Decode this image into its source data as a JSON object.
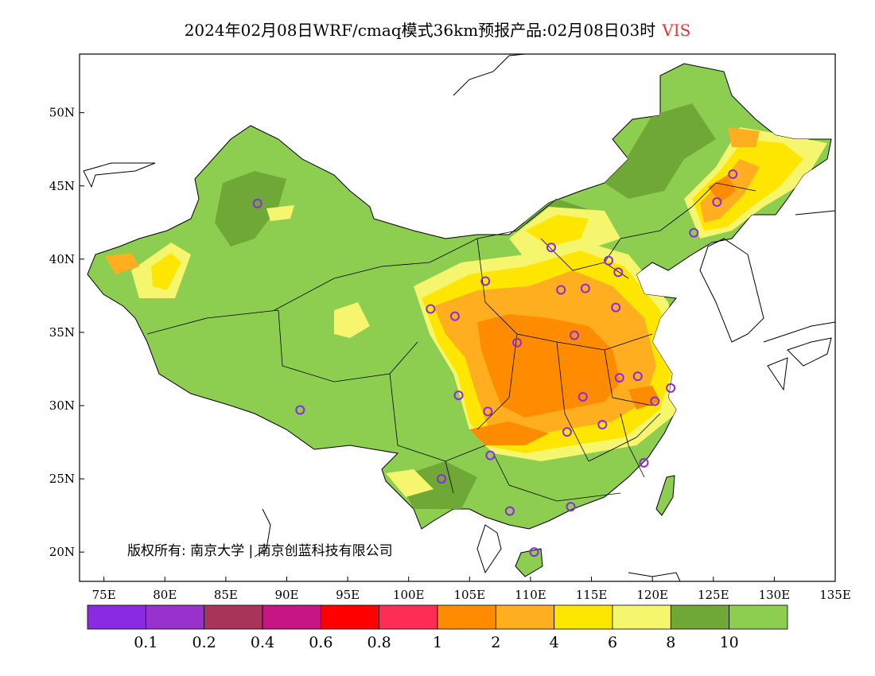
{
  "title": {
    "main": "2024年02月08日WRF/cmaq模式36km预报产品:02月08日03时",
    "variable": "VIS",
    "variable_color": "#e8322e"
  },
  "map": {
    "lon_range": [
      73,
      135
    ],
    "lat_range": [
      18,
      54
    ],
    "lon_ticks": [
      "75E",
      "80E",
      "85E",
      "90E",
      "95E",
      "100E",
      "105E",
      "110E",
      "115E",
      "120E",
      "125E",
      "130E",
      "135E"
    ],
    "lat_ticks": [
      "20N",
      "25N",
      "30N",
      "35N",
      "40N",
      "45N",
      "50N"
    ],
    "land_color": "#8dcd4f",
    "copyright": "版权所有: 南京大学 | 南京创蓝科技有限公司"
  },
  "legend": {
    "colors": [
      "#8a2be2",
      "#9932cc",
      "#a9345a",
      "#c71585",
      "#ff0000",
      "#ff2d55",
      "#ff8c00",
      "#ffae1f",
      "#ffe600",
      "#f6f66e",
      "#6fa836",
      "#8dcd4f"
    ],
    "labels": [
      "0.1",
      "0.2",
      "0.4",
      "0.6",
      "0.8",
      "1",
      "2",
      "4",
      "6",
      "8",
      "10"
    ]
  },
  "stations": [
    {
      "lon": 87.6,
      "lat": 43.8
    },
    {
      "lon": 91.1,
      "lat": 29.7
    },
    {
      "lon": 101.8,
      "lat": 36.6
    },
    {
      "lon": 103.8,
      "lat": 36.1
    },
    {
      "lon": 106.3,
      "lat": 38.5
    },
    {
      "lon": 111.7,
      "lat": 40.8
    },
    {
      "lon": 116.4,
      "lat": 39.9
    },
    {
      "lon": 117.2,
      "lat": 39.1
    },
    {
      "lon": 114.5,
      "lat": 38.0
    },
    {
      "lon": 112.5,
      "lat": 37.9
    },
    {
      "lon": 117.0,
      "lat": 36.7
    },
    {
      "lon": 113.6,
      "lat": 34.8
    },
    {
      "lon": 108.9,
      "lat": 34.3
    },
    {
      "lon": 104.1,
      "lat": 30.7
    },
    {
      "lon": 106.5,
      "lat": 29.6
    },
    {
      "lon": 114.3,
      "lat": 30.6
    },
    {
      "lon": 117.3,
      "lat": 31.9
    },
    {
      "lon": 118.8,
      "lat": 32.0
    },
    {
      "lon": 121.5,
      "lat": 31.2
    },
    {
      "lon": 120.2,
      "lat": 30.3
    },
    {
      "lon": 115.9,
      "lat": 28.7
    },
    {
      "lon": 113.0,
      "lat": 28.2
    },
    {
      "lon": 106.7,
      "lat": 26.6
    },
    {
      "lon": 102.7,
      "lat": 25.0
    },
    {
      "lon": 108.3,
      "lat": 22.8
    },
    {
      "lon": 113.3,
      "lat": 23.1
    },
    {
      "lon": 119.3,
      "lat": 26.1
    },
    {
      "lon": 110.3,
      "lat": 20.0
    },
    {
      "lon": 123.4,
      "lat": 41.8
    },
    {
      "lon": 125.3,
      "lat": 43.9
    },
    {
      "lon": 126.6,
      "lat": 45.8
    }
  ]
}
